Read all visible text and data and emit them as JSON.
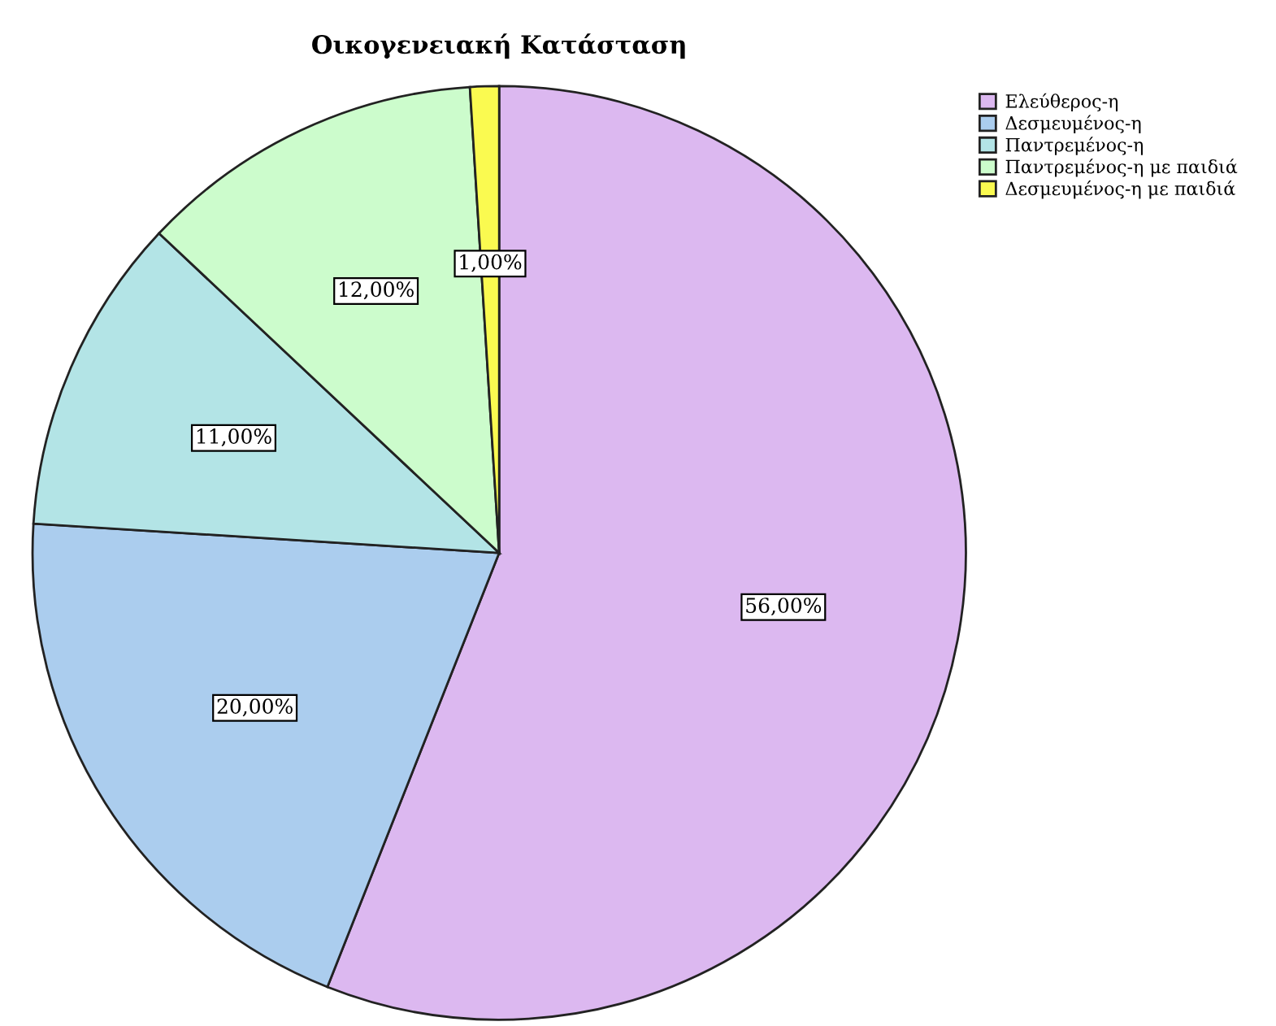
{
  "chart_data": {
    "type": "pie",
    "title": "Οικογενειακή Κατάσταση",
    "categories": [
      "Ελεύθερος-η",
      "Δεσμευμένος-η",
      "Παντρεμένος-η",
      "Παντρεμένος-η με παιδιά",
      "Δεσμευμένος-η με παιδιά"
    ],
    "values": [
      56,
      20,
      11,
      12,
      1
    ],
    "value_labels": [
      "56,00%",
      "20,00%",
      "11,00%",
      "12,00%",
      "1,00%"
    ],
    "colors": [
      "#dcb8f0",
      "#abcdee",
      "#b3e4e6",
      "#ccfccc",
      "#fafa50"
    ],
    "legend": "top right"
  }
}
